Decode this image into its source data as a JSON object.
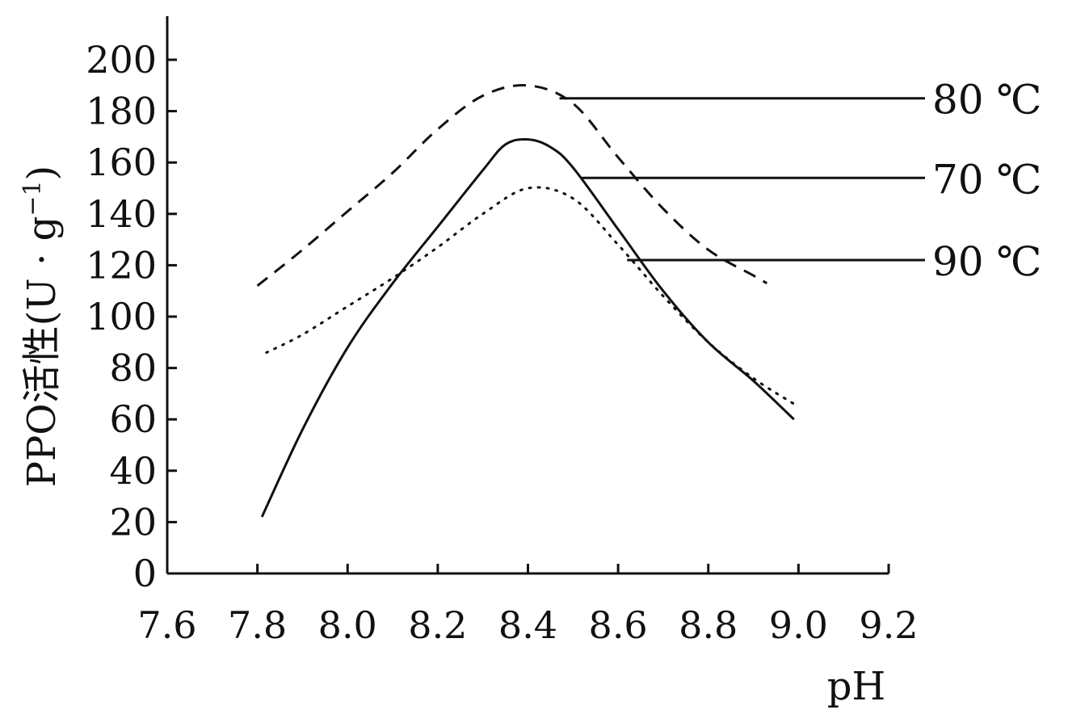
{
  "chart_data": {
    "type": "line",
    "xlabel": "pH",
    "ylabel_main": "PPO活性(U · g",
    "ylabel_sup": "−1",
    "ylabel_close": ")",
    "xlim": [
      7.6,
      9.2
    ],
    "ylim": [
      0,
      200
    ],
    "x_ticks": [
      "7.6",
      "7.8",
      "8.0",
      "8.2",
      "8.4",
      "8.6",
      "8.8",
      "9.0",
      "9.2"
    ],
    "y_ticks": [
      "0",
      "20",
      "40",
      "60",
      "80",
      "100",
      "120",
      "140",
      "160",
      "180",
      "200"
    ],
    "grid": false,
    "series": [
      {
        "name": "80 ℃",
        "line_style": "dashed",
        "x": [
          7.8,
          7.9,
          8.0,
          8.1,
          8.2,
          8.3,
          8.4,
          8.5,
          8.6,
          8.7,
          8.8,
          8.9,
          8.93
        ],
        "y": [
          112,
          126,
          141,
          156,
          173,
          186,
          190,
          183,
          162,
          142,
          126,
          116,
          113
        ]
      },
      {
        "name": "70 ℃",
        "line_style": "solid",
        "x": [
          7.81,
          7.9,
          8.0,
          8.1,
          8.2,
          8.3,
          8.35,
          8.4,
          8.45,
          8.5,
          8.6,
          8.7,
          8.8,
          8.9,
          8.99
        ],
        "y": [
          22,
          56,
          88,
          113,
          135,
          157,
          167,
          169,
          166,
          158,
          134,
          110,
          90,
          75,
          60
        ]
      },
      {
        "name": "90 ℃",
        "line_style": "dotted",
        "x": [
          7.82,
          7.9,
          8.0,
          8.1,
          8.2,
          8.3,
          8.4,
          8.5,
          8.6,
          8.7,
          8.8,
          8.9,
          8.99
        ],
        "y": [
          86,
          93,
          104,
          115,
          127,
          140,
          150,
          146,
          128,
          108,
          90,
          76,
          66
        ]
      }
    ]
  }
}
